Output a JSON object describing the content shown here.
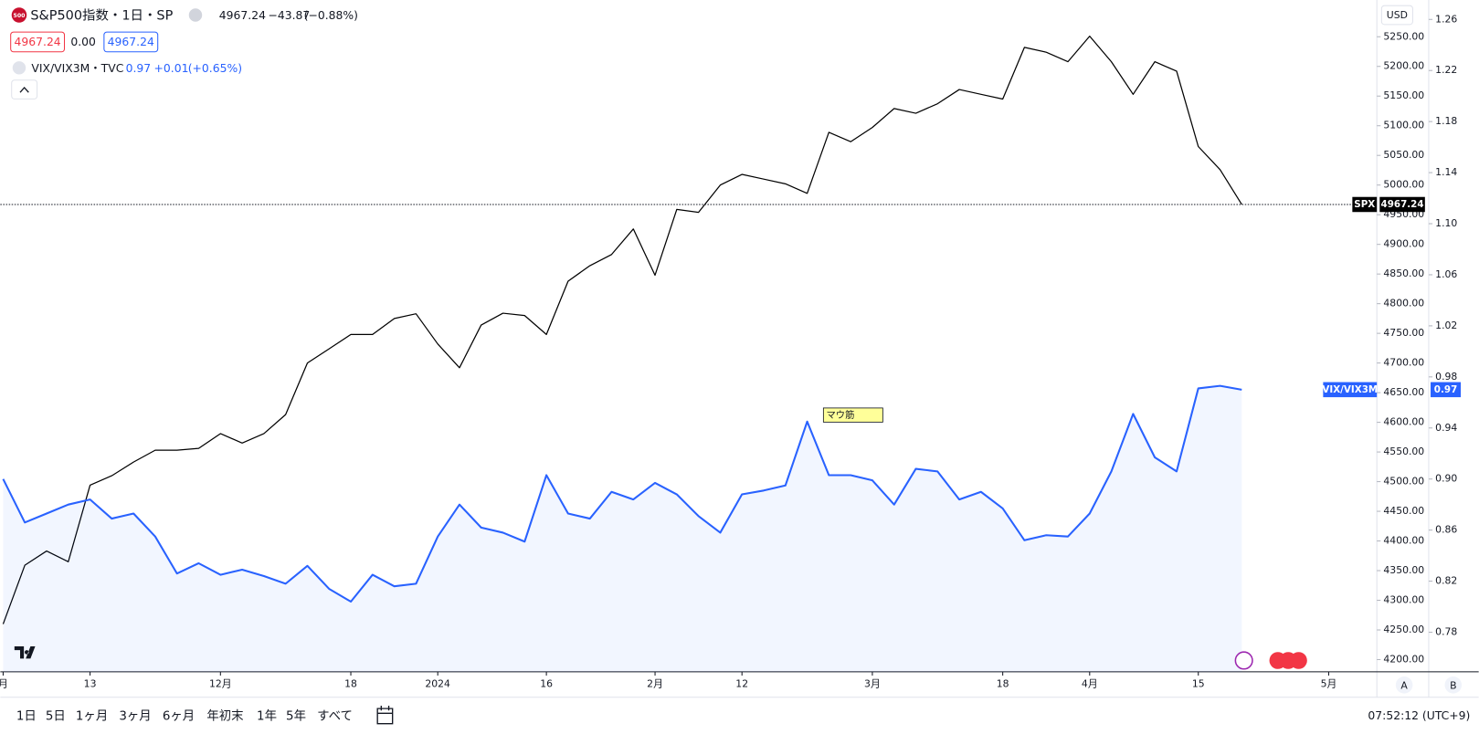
{
  "header": {
    "logo": "500",
    "symbol": "S&P500指数・1日・SP",
    "price": "4967.24",
    "change": "−43.87",
    "change_pct": "(−0.88%)",
    "box_sell": "4967.24",
    "box_spread": "0.00",
    "box_buy": "4967.24",
    "study": "VIX/VIX3M・TVC",
    "study_change": "+0.01",
    "study_change_pct": "(+0.65%)",
    "currency": "USD"
  },
  "chart_data": {
    "type": "line",
    "xlim": [
      0,
      63
    ],
    "xticks": [
      {
        "value": 0,
        "label": "月"
      },
      {
        "value": 4,
        "label": "13"
      },
      {
        "value": 10,
        "label": "12月"
      },
      {
        "value": 16,
        "label": "18"
      },
      {
        "value": 20,
        "label": "2024"
      },
      {
        "value": 25,
        "label": "16"
      },
      {
        "value": 30,
        "label": "2月"
      },
      {
        "value": 34,
        "label": "12"
      },
      {
        "value": 40,
        "label": "3月"
      },
      {
        "value": 46,
        "label": "18"
      },
      {
        "value": 50,
        "label": "4月"
      },
      {
        "value": 55,
        "label": "15"
      },
      {
        "value": 61,
        "label": "5月"
      }
    ],
    "ylim": [
      4179.4,
      5307.2
    ],
    "yticks": [
      {
        "value": 4200,
        "label": "4200.00"
      },
      {
        "value": 4250,
        "label": "4250.00"
      },
      {
        "value": 4300,
        "label": "4300.00"
      },
      {
        "value": 4350,
        "label": "4350.00"
      },
      {
        "value": 4400,
        "label": "4400.00"
      },
      {
        "value": 4450,
        "label": "4450.00"
      },
      {
        "value": 4500,
        "label": "4500.00"
      },
      {
        "value": 4550,
        "label": "4550.00"
      },
      {
        "value": 4600,
        "label": "4600.00"
      },
      {
        "value": 4650,
        "label": "4650.00"
      },
      {
        "value": 4700,
        "label": "4700.00"
      },
      {
        "value": 4750,
        "label": "4750.00"
      },
      {
        "value": 4800,
        "label": "4800.00"
      },
      {
        "value": 4850,
        "label": "4850.00"
      },
      {
        "value": 4900,
        "label": "4900.00"
      },
      {
        "value": 4950,
        "label": "4950.00"
      },
      {
        "value": 5000,
        "label": "5000.00"
      },
      {
        "value": 5050,
        "label": "5050.00"
      },
      {
        "value": 5100,
        "label": "5100.00"
      },
      {
        "value": 5150,
        "label": "5150.00"
      },
      {
        "value": 5200,
        "label": "5200.00"
      },
      {
        "value": 5250,
        "label": "5250.00"
      }
    ],
    "y2lim": [
      0.749,
      1.273
    ],
    "y2ticks": [
      0.78,
      0.82,
      0.86,
      {
        "value": 0.9,
        "label": "0.90"
      },
      0.94,
      0.98,
      1.02,
      1.06,
      {
        "value": 1.1,
        "label": "1.10"
      },
      1.14,
      1.18,
      1.22,
      1.26
    ],
    "series": [
      {
        "name": "SPX",
        "color": "#000000",
        "values": [
          4260,
          4359,
          4383,
          4365,
          4494,
          4510,
          4533,
          4553,
          4553,
          4556,
          4581,
          4565,
          4581,
          4613,
          4700,
          4724,
          4748,
          4748,
          4775,
          4783,
          4732,
          4692,
          4764,
          4784,
          4780,
          4748,
          4838,
          4864,
          4883,
          4926,
          4848,
          4959,
          4954,
          5000,
          5018,
          5010,
          5002,
          4986,
          5089,
          5073,
          5097,
          5129,
          5121,
          5137,
          5161,
          5153,
          5145,
          5232,
          5224,
          5208,
          5251,
          5208,
          5153,
          5208,
          5192,
          5065,
          5026,
          4967.24
        ]
      },
      {
        "name": "VIX/VIX3M",
        "color": "#2962ff",
        "area": true,
        "axis": "y2",
        "values": [
          0.9,
          0.866,
          0.873,
          0.88,
          0.884,
          0.869,
          0.873,
          0.855,
          0.826,
          0.834,
          0.825,
          0.829,
          0.824,
          0.818,
          0.832,
          0.814,
          0.804,
          0.825,
          0.816,
          0.818,
          0.855,
          0.88,
          0.862,
          0.858,
          0.851,
          0.903,
          0.873,
          0.869,
          0.89,
          0.884,
          0.897,
          0.888,
          0.871,
          0.858,
          0.888,
          0.891,
          0.895,
          0.945,
          0.903,
          0.903,
          0.899,
          0.88,
          0.908,
          0.906,
          0.884,
          0.89,
          0.877,
          0.852,
          0.856,
          0.855,
          0.873,
          0.906,
          0.951,
          0.917,
          0.906,
          0.971,
          0.973,
          0.97
        ]
      }
    ],
    "annotation": "マウ筋"
  },
  "toolbar": {
    "ranges": [
      "1日",
      "5日",
      "1ヶ月",
      "3ヶ月",
      "6ヶ月",
      "年初末",
      "1年",
      "5年",
      "すべて"
    ],
    "clock": "07:52:12 (UTC+9)",
    "scale_a": "A",
    "scale_b": "B"
  }
}
